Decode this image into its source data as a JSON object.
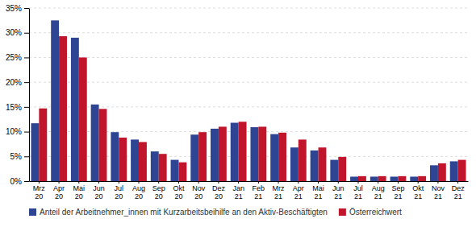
{
  "chart_data": {
    "type": "bar",
    "categories": [
      "Mrz\n20",
      "Apr\n20",
      "Mai\n20",
      "Jun\n20",
      "Jul\n20",
      "Aug\n20",
      "Sep\n20",
      "Okt\n20",
      "Nov\n20",
      "Dez\n20",
      "Jan\n21",
      "Feb\n21",
      "Mrz\n21",
      "Apr\n21",
      "Mai\n21",
      "Jun\n21",
      "Jul\n21",
      "Aug\n21",
      "Sep\n21",
      "Okt\n21",
      "Nov\n21",
      "Dez\n21"
    ],
    "series": [
      {
        "name": "Anteil der Arbeitnehmer_innen mit Kurzarbeitsbeihilfe an den Aktiv-Beschäftigten",
        "color": "#2E4593",
        "values": [
          11.7,
          32.5,
          29.0,
          15.5,
          9.9,
          8.4,
          6.0,
          4.3,
          9.4,
          10.6,
          11.8,
          10.9,
          9.5,
          6.8,
          6.2,
          4.3,
          0.9,
          0.9,
          0.9,
          0.9,
          3.2,
          4.0
        ]
      },
      {
        "name": "Österreichwert",
        "color": "#C0152A",
        "values": [
          14.7,
          29.3,
          25.0,
          14.6,
          8.8,
          7.9,
          5.5,
          3.8,
          9.9,
          11.0,
          12.0,
          11.0,
          9.8,
          8.4,
          6.8,
          4.9,
          1.0,
          1.0,
          1.0,
          1.0,
          3.6,
          4.3
        ]
      }
    ],
    "ylim": [
      0,
      35
    ],
    "yticks": [
      {
        "value": 0,
        "label": "0%"
      },
      {
        "value": 5,
        "label": "5%"
      },
      {
        "value": 10,
        "label": "10%"
      },
      {
        "value": 15,
        "label": "15%"
      },
      {
        "value": 20,
        "label": "20%"
      },
      {
        "value": 25,
        "label": "25%"
      },
      {
        "value": 30,
        "label": "30%"
      },
      {
        "value": 35,
        "label": "35%"
      }
    ],
    "grid": true,
    "legend": "bottom"
  }
}
